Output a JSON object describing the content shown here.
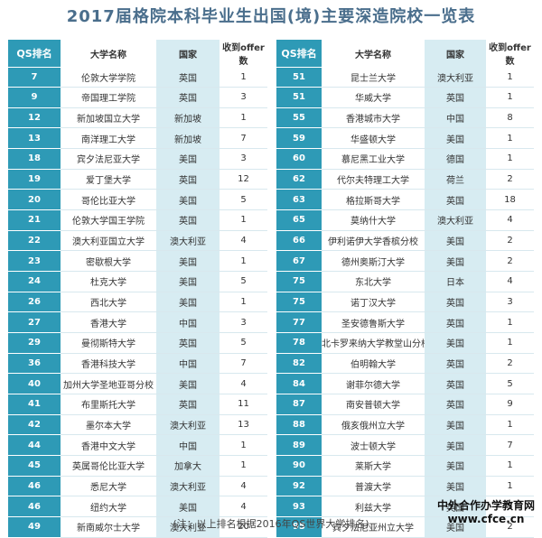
{
  "title": "2017届格院本科毕业生出国(境)主要深造院校一览表",
  "headers": {
    "rank": "QS排名",
    "name": "大学名称",
    "country": "国家",
    "offers": "收到offer数"
  },
  "left_rows": [
    {
      "rank": "7",
      "name": "伦敦大学学院",
      "country": "英国",
      "offers": "1"
    },
    {
      "rank": "9",
      "name": "帝国理工学院",
      "country": "英国",
      "offers": "3"
    },
    {
      "rank": "12",
      "name": "新加坡国立大学",
      "country": "新加坡",
      "offers": "1"
    },
    {
      "rank": "13",
      "name": "南洋理工大学",
      "country": "新加坡",
      "offers": "7"
    },
    {
      "rank": "18",
      "name": "宾夕法尼亚大学",
      "country": "美国",
      "offers": "3"
    },
    {
      "rank": "19",
      "name": "爱丁堡大学",
      "country": "英国",
      "offers": "12"
    },
    {
      "rank": "20",
      "name": "哥伦比亚大学",
      "country": "美国",
      "offers": "5"
    },
    {
      "rank": "21",
      "name": "伦敦大学国王学院",
      "country": "英国",
      "offers": "1"
    },
    {
      "rank": "22",
      "name": "澳大利亚国立大学",
      "country": "澳大利亚",
      "offers": "4"
    },
    {
      "rank": "23",
      "name": "密歇根大学",
      "country": "美国",
      "offers": "1"
    },
    {
      "rank": "24",
      "name": "杜克大学",
      "country": "美国",
      "offers": "5"
    },
    {
      "rank": "26",
      "name": "西北大学",
      "country": "美国",
      "offers": "1"
    },
    {
      "rank": "27",
      "name": "香港大学",
      "country": "中国",
      "offers": "3"
    },
    {
      "rank": "29",
      "name": "曼彻斯特大学",
      "country": "英国",
      "offers": "5"
    },
    {
      "rank": "36",
      "name": "香港科技大学",
      "country": "中国",
      "offers": "7"
    },
    {
      "rank": "40",
      "name": "加州大学圣地亚哥分校",
      "country": "美国",
      "offers": "4"
    },
    {
      "rank": "41",
      "name": "布里斯托大学",
      "country": "英国",
      "offers": "11"
    },
    {
      "rank": "42",
      "name": "墨尔本大学",
      "country": "澳大利亚",
      "offers": "13"
    },
    {
      "rank": "44",
      "name": "香港中文大学",
      "country": "中国",
      "offers": "1"
    },
    {
      "rank": "45",
      "name": "英属哥伦比亚大学",
      "country": "加拿大",
      "offers": "1"
    },
    {
      "rank": "46",
      "name": "悉尼大学",
      "country": "澳大利亚",
      "offers": "4"
    },
    {
      "rank": "46",
      "name": "纽约大学",
      "country": "美国",
      "offers": "4"
    },
    {
      "rank": "49",
      "name": "新南威尔士大学",
      "country": "澳大利亚",
      "offers": "20"
    }
  ],
  "right_rows": [
    {
      "rank": "51",
      "name": "昆士兰大学",
      "country": "澳大利亚",
      "offers": "1"
    },
    {
      "rank": "51",
      "name": "华威大学",
      "country": "英国",
      "offers": "1"
    },
    {
      "rank": "55",
      "name": "香港城市大学",
      "country": "中国",
      "offers": "8"
    },
    {
      "rank": "59",
      "name": "华盛顿大学",
      "country": "美国",
      "offers": "1"
    },
    {
      "rank": "60",
      "name": "慕尼黑工业大学",
      "country": "德国",
      "offers": "1"
    },
    {
      "rank": "62",
      "name": "代尔夫特理工大学",
      "country": "荷兰",
      "offers": "2"
    },
    {
      "rank": "63",
      "name": "格拉斯哥大学",
      "country": "英国",
      "offers": "18"
    },
    {
      "rank": "65",
      "name": "莫纳什大学",
      "country": "澳大利亚",
      "offers": "4"
    },
    {
      "rank": "66",
      "name": "伊利诺伊大学香槟分校",
      "country": "美国",
      "offers": "2"
    },
    {
      "rank": "67",
      "name": "德州奥斯汀大学",
      "country": "美国",
      "offers": "2"
    },
    {
      "rank": "75",
      "name": "东北大学",
      "country": "日本",
      "offers": "4"
    },
    {
      "rank": "75",
      "name": "诺丁汉大学",
      "country": "英国",
      "offers": "3"
    },
    {
      "rank": "77",
      "name": "圣安德鲁斯大学",
      "country": "英国",
      "offers": "1"
    },
    {
      "rank": "78",
      "name": "北卡罗来纳大学教堂山分校",
      "country": "美国",
      "offers": "1"
    },
    {
      "rank": "82",
      "name": "伯明翰大学",
      "country": "英国",
      "offers": "2"
    },
    {
      "rank": "84",
      "name": "谢菲尔德大学",
      "country": "英国",
      "offers": "5"
    },
    {
      "rank": "87",
      "name": "南安普顿大学",
      "country": "英国",
      "offers": "9"
    },
    {
      "rank": "88",
      "name": "俄亥俄州立大学",
      "country": "美国",
      "offers": "1"
    },
    {
      "rank": "89",
      "name": "波士顿大学",
      "country": "美国",
      "offers": "7"
    },
    {
      "rank": "90",
      "name": "莱斯大学",
      "country": "美国",
      "offers": "1"
    },
    {
      "rank": "92",
      "name": "普渡大学",
      "country": "美国",
      "offers": "1"
    },
    {
      "rank": "93",
      "name": "利兹大学",
      "country": "英国",
      "offers": "5"
    },
    {
      "rank": "95",
      "name": "宾夕法尼亚州立大学",
      "country": "美国",
      "offers": "2"
    }
  ],
  "note": "(注：以上排名根据2016年QS世界大学排名)",
  "watermark": {
    "line1": "中外合作办学教育网",
    "line2": "www.cfce.cn"
  }
}
